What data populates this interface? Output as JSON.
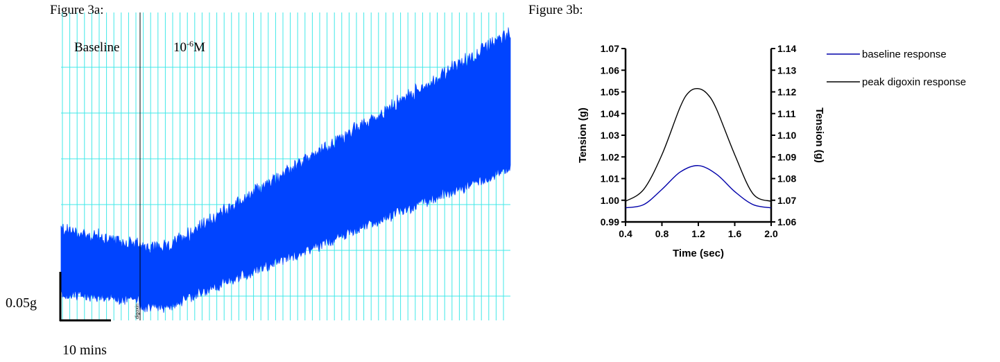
{
  "figure_a": {
    "title": "Figure 3a:",
    "baseline_label": "Baseline",
    "conc_base": "10",
    "conc_exp": "-6",
    "conc_unit": "M",
    "marker_label": "digoxin",
    "scale_y": "0.05g",
    "scale_x": "10 mins",
    "trace_color": "#0044ff",
    "grid_color": "#40e8e8"
  },
  "figure_b": {
    "title": "Figure 3b:"
  },
  "chart_data": [
    {
      "type": "line",
      "description_only_for_reference": "",
      "series": [
        {
          "name": "",
          "color": "#0044ff",
          "segments": [
            {
              "x_frac_start": 0.0,
              "x_frac_end": 0.18,
              "lower": [
                0.13,
                0.08
              ],
              "upper": [
                0.28,
                0.22
              ]
            },
            {
              "x_frac_start": 0.18,
              "x_frac_end": 1.0,
              "lower": [
                0.05,
                0.55
              ],
              "upper": [
                0.25,
                0.95
              ]
            }
          ]
        }
      ]
    },
    {
      "type": "line",
      "title": "",
      "xlabel": "Time (sec)",
      "ylabel_left": "Tension (g)",
      "ylabel_right": "Tension (g)",
      "xlim": [
        0.4,
        2.0
      ],
      "ylim_left": [
        0.99,
        1.07
      ],
      "ylim_right": [
        1.06,
        1.14
      ],
      "x_ticks": [
        "0.4",
        "0.8",
        "1.2",
        "1.6",
        "2.0"
      ],
      "y_ticks_left": [
        "0.99",
        "1.00",
        "1.01",
        "1.02",
        "1.03",
        "1.04",
        "1.05",
        "1.06",
        "1.07"
      ],
      "y_ticks_right": [
        "1.06",
        "1.07",
        "1.08",
        "1.09",
        "1.10",
        "1.11",
        "1.12",
        "1.13",
        "1.14"
      ],
      "legend_position": "top-right",
      "series": [
        {
          "name": "baseline response",
          "color": "#0000aa",
          "axis": "left",
          "x": [
            0.4,
            0.6,
            0.8,
            1.0,
            1.2,
            1.4,
            1.6,
            1.8,
            2.0
          ],
          "y": [
            0.9965,
            0.998,
            1.005,
            1.013,
            1.016,
            1.012,
            1.004,
            0.998,
            0.9965
          ]
        },
        {
          "name": "peak digoxin response",
          "color": "#000000",
          "axis": "left",
          "x": [
            0.4,
            0.6,
            0.8,
            1.0,
            1.1,
            1.2,
            1.3,
            1.4,
            1.6,
            1.8,
            2.0
          ],
          "y": [
            0.9995,
            1.005,
            1.021,
            1.043,
            1.05,
            1.0515,
            1.049,
            1.042,
            1.021,
            1.003,
            0.9995
          ]
        }
      ]
    }
  ]
}
